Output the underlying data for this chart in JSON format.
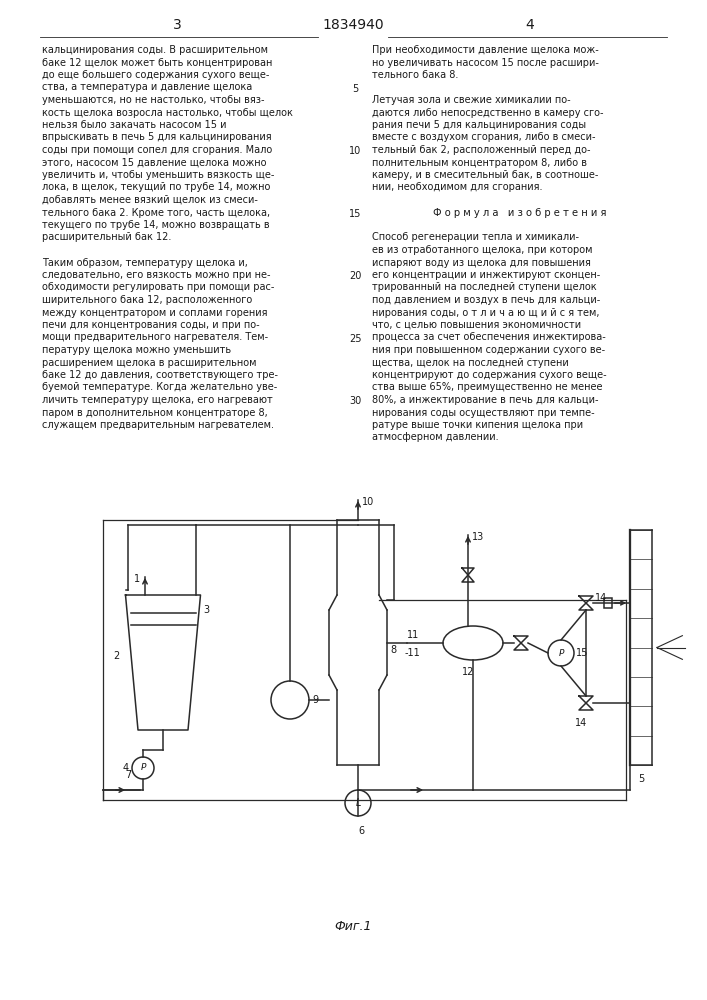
{
  "page_number_left": "3",
  "patent_number": "1834940",
  "page_number_right": "4",
  "background_color": "#ffffff",
  "text_color": "#1a1a1a",
  "line_color": "#2a2a2a",
  "left_col_lines": [
    "кальцинирования соды. В расширительном",
    "баке 12 щелок может быть концентрирован",
    "до еще большего содержания сухого веще-",
    "ства, а температура и давление щелока",
    "уменьшаются, но не настолько, чтобы вяз-",
    "кость щелока возросла настолько, чтобы щелок",
    "нельзя было закачать насосом 15 и",
    "впрыскивать в печь 5 для кальцинирования",
    "соды при помощи сопел для сгорания. Мало",
    "этого, насосом 15 давление щелока можно",
    "увеличить и, чтобы уменьшить вязкость ще-",
    "лока, в щелок, текущий по трубе 14, можно",
    "добавлять менее вязкий щелок из смеси-",
    "тельного бака 2. Кроме того, часть щелока,",
    "текущего по трубе 14, можно возвращать в",
    "расширительный бак 12.",
    "",
    "Таким образом, температуру щелока и,",
    "следовательно, его вязкость можно при не-",
    "обходимости регулировать при помощи рас-",
    "ширительного бака 12, расположенного",
    "между концентратором и соплами горения",
    "печи для концентрования соды, и при по-",
    "мощи предварительного нагревателя. Тем-",
    "пературу щелока можно уменьшить",
    "расширением щелока в расширительном",
    "баке 12 до давления, соответствующего тре-",
    "буемой температуре. Когда желательно уве-",
    "личить температуру щелока, его нагревают",
    "паром в дополнительном концентраторе 8,",
    "служащем предварительным нагревателем."
  ],
  "right_col_lines": [
    "При необходимости давление щелока мож-",
    "но увеличивать насосом 15 после расшири-",
    "тельного бака 8.",
    "",
    "Летучая зола и свежие химикалии по-",
    "даются либо непосредственно в камеру сго-",
    "рания печи 5 для кальцинирования соды",
    "вместе с воздухом сгорания, либо в смеси-",
    "тельный бак 2, расположенный перед до-",
    "полнительным концентратором 8, либо в",
    "камеру, и в смесительный бак, в соотноше-",
    "нии, необходимом для сгорания.",
    "",
    "Ф о р м у л а   и з о б р е т е н и я",
    "",
    "Способ регенерации тепла и химикали-",
    "ев из отработанного щелока, при котором",
    "испаряют воду из щелока для повышения",
    "его концентрации и инжектируют сконцен-",
    "трированный на последней ступени щелок",
    "под давлением и воздух в печь для кальци-",
    "нирования соды, о т л и ч а ю щ и й с я тем,",
    "что, с целью повышения экономичности",
    "процесса за счет обеспечения инжектирова-",
    "ния при повышенном содержании сухого ве-",
    "щества, щелок на последней ступени",
    "концентрируют до содержания сухого веще-",
    "ства выше 65%, преимущественно не менее",
    "80%, а инжектирование в печь для кальци-",
    "нирования соды осуществляют при темпе-",
    "ратуре выше точки кипения щелока при",
    "атмосферном давлении."
  ],
  "formula_line_idx": 13,
  "line_numbers": [
    [
      4,
      5
    ],
    [
      9,
      10
    ],
    [
      14,
      15
    ],
    [
      19,
      20
    ],
    [
      24,
      25
    ],
    [
      29,
      30
    ]
  ],
  "fig_caption": "Фиг.1"
}
